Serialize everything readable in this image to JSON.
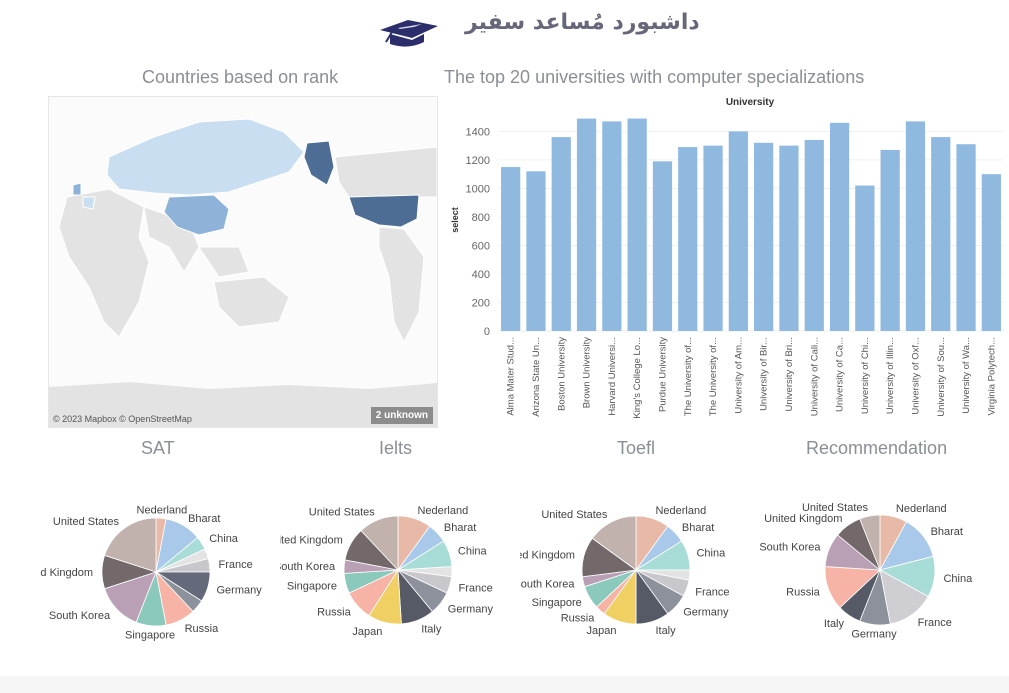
{
  "header": {
    "title": "داشبورد مُساعد سفير",
    "icon": "graduation-cap-icon"
  },
  "map": {
    "title": "Countries based on rank",
    "credit": "© 2023 Mapbox © OpenStreetMap",
    "unknown_badge": "2 unknown"
  },
  "colors": {
    "bar": "#8fb9df",
    "map_dark": "#4e6d94",
    "map_mid": "#8fb3d8",
    "map_light": "#c9def0",
    "map_land": "#e3e3e3"
  },
  "chart_data": [
    {
      "type": "bar",
      "title": "The top 20 universities with computer specializations",
      "legend_title": "University",
      "ylabel": "select",
      "ylim": [
        0,
        1550
      ],
      "yticks": [
        0,
        200,
        400,
        600,
        800,
        1000,
        1200,
        1400
      ],
      "categories": [
        "Alma Mater Stud...",
        "Arizona State Un...",
        "Boston University",
        "Brown University",
        "Harvard Universi...",
        "King's College Lo...",
        "Purdue University",
        "The University of...",
        "The University of...",
        "University of Am...",
        "University of Bir...",
        "University of Bri...",
        "University of Cali...",
        "University of Ca...",
        "University of Chi...",
        "University of Illin...",
        "University of Oxf...",
        "University of Sou...",
        "University of Wa...",
        "Virginia Polytech..."
      ],
      "values": [
        1150,
        1120,
        1360,
        1490,
        1470,
        1490,
        1190,
        1290,
        1300,
        1400,
        1320,
        1300,
        1340,
        1460,
        1020,
        1270,
        1470,
        1360,
        1310,
        1100
      ]
    },
    {
      "type": "pie",
      "title": "SAT",
      "slices": [
        {
          "label": "Nederland",
          "value": 3,
          "color": "#e8b9a6"
        },
        {
          "label": "Bharat",
          "value": 11,
          "color": "#a9c9ea"
        },
        {
          "label": "China",
          "value": 4,
          "color": "#a8dcd6"
        },
        {
          "label": "",
          "value": 3,
          "color": "#e3e3e3"
        },
        {
          "label": "France",
          "value": 4,
          "color": "#c7c7cc"
        },
        {
          "label": "Germany",
          "value": 9,
          "color": "#656a7a"
        },
        {
          "label": "",
          "value": 4,
          "color": "#8d919c"
        },
        {
          "label": "Russia",
          "value": 9,
          "color": "#f7b4a6"
        },
        {
          "label": "Singapore",
          "value": 9,
          "color": "#8cc9bd"
        },
        {
          "label": "South Korea",
          "value": 14,
          "color": "#b9a0b5"
        },
        {
          "label": "United Kingdom",
          "value": 10,
          "color": "#74696a"
        },
        {
          "label": "United States",
          "value": 20,
          "color": "#c1b2ad"
        }
      ]
    },
    {
      "type": "pie",
      "title": "Ielts",
      "slices": [
        {
          "label": "Nederland",
          "value": 10,
          "color": "#e8b9a6"
        },
        {
          "label": "Bharat",
          "value": 6,
          "color": "#a9c9ea"
        },
        {
          "label": "China",
          "value": 8,
          "color": "#a8dcd6"
        },
        {
          "label": "",
          "value": 3,
          "color": "#e3e3e3"
        },
        {
          "label": "France",
          "value": 5,
          "color": "#c7c7cc"
        },
        {
          "label": "Germany",
          "value": 7,
          "color": "#8d919c"
        },
        {
          "label": "Italy",
          "value": 10,
          "color": "#555a66"
        },
        {
          "label": "Japan",
          "value": 10,
          "color": "#f0cf63"
        },
        {
          "label": "Russia",
          "value": 9,
          "color": "#f7b4a6"
        },
        {
          "label": "Singapore",
          "value": 6,
          "color": "#8cc9bd"
        },
        {
          "label": "South Korea",
          "value": 4,
          "color": "#b9a0b5"
        },
        {
          "label": "United Kingdom",
          "value": 10,
          "color": "#74696a"
        },
        {
          "label": "United States",
          "value": 12,
          "color": "#c1b2ad"
        }
      ]
    },
    {
      "type": "pie",
      "title": "Toefl",
      "slices": [
        {
          "label": "Nederland",
          "value": 10,
          "color": "#e8b9a6"
        },
        {
          "label": "Bharat",
          "value": 6,
          "color": "#a9c9ea"
        },
        {
          "label": "China",
          "value": 9,
          "color": "#a8dcd6"
        },
        {
          "label": "",
          "value": 3,
          "color": "#e3e3e3"
        },
        {
          "label": "France",
          "value": 5,
          "color": "#c7c7cc"
        },
        {
          "label": "Germany",
          "value": 7,
          "color": "#8d919c"
        },
        {
          "label": "Italy",
          "value": 10,
          "color": "#555a66"
        },
        {
          "label": "Japan",
          "value": 10,
          "color": "#f0cf63"
        },
        {
          "label": "Russia",
          "value": 3,
          "color": "#f7b4a6"
        },
        {
          "label": "Singapore",
          "value": 7,
          "color": "#8cc9bd"
        },
        {
          "label": "South Korea",
          "value": 3,
          "color": "#b9a0b5"
        },
        {
          "label": "United Kingdom",
          "value": 12,
          "color": "#74696a"
        },
        {
          "label": "United States",
          "value": 15,
          "color": "#c1b2ad"
        }
      ]
    },
    {
      "type": "pie",
      "title": "Recommendation",
      "slices": [
        {
          "label": "Nederland",
          "value": 8,
          "color": "#e8b9a6"
        },
        {
          "label": "Bharat",
          "value": 13,
          "color": "#a9c9ea"
        },
        {
          "label": "China",
          "value": 12,
          "color": "#a8dcd6"
        },
        {
          "label": "France",
          "value": 14,
          "color": "#cfcfd3"
        },
        {
          "label": "Germany",
          "value": 9,
          "color": "#8d919c"
        },
        {
          "label": "Italy",
          "value": 7,
          "color": "#555a66"
        },
        {
          "label": "Russia",
          "value": 13,
          "color": "#f7b4a6"
        },
        {
          "label": "South Korea",
          "value": 10,
          "color": "#b9a0b5"
        },
        {
          "label": "United Kingdom",
          "value": 8,
          "color": "#74696a"
        },
        {
          "label": "United States",
          "value": 6,
          "color": "#c1b2ad"
        }
      ]
    }
  ]
}
